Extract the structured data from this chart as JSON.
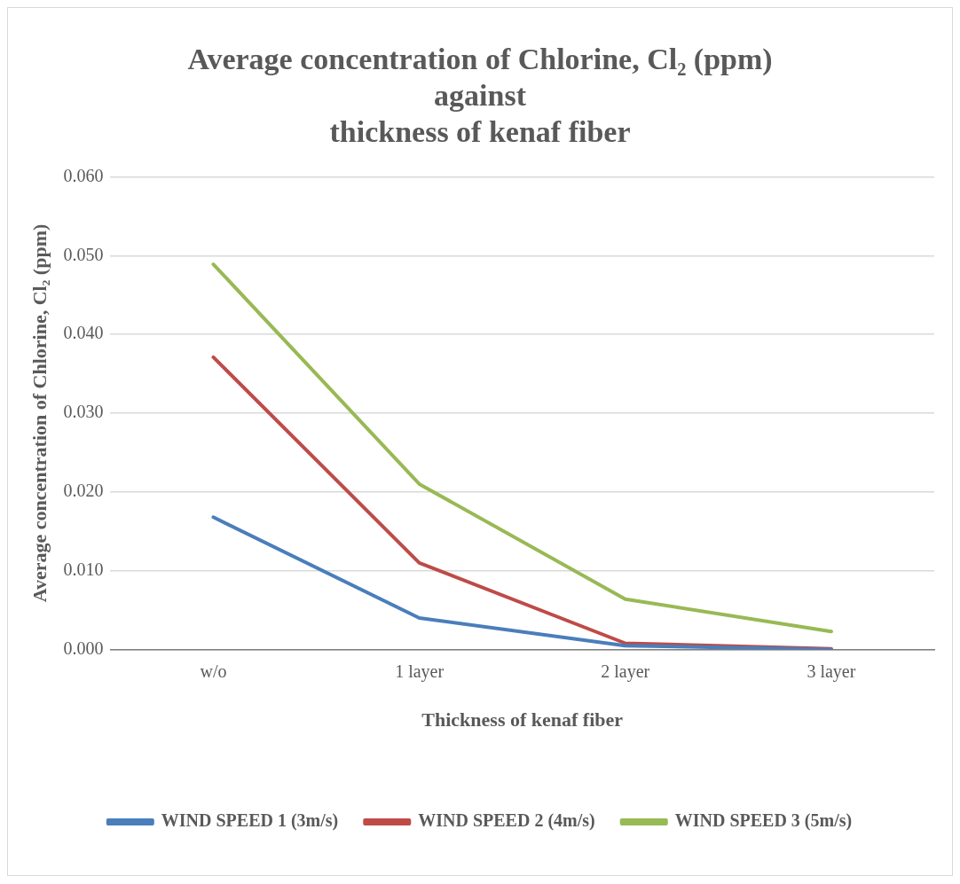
{
  "chart_data": {
    "type": "line",
    "title": "Average concentration of Chlorine, Cl₂ (ppm)\nagainst\nthickness of kenaf fiber",
    "xlabel": "Thickness of kenaf fiber",
    "ylabel": "Average concentration of Chlorine, Cl₂ (ppm)",
    "categories": [
      "w/o",
      "1 layer",
      "2 layer",
      "3 layer"
    ],
    "series": [
      {
        "name": "WIND SPEED 1 (3m/s)",
        "color": "#4a7ebb",
        "values": [
          0.0168,
          0.004,
          0.0005,
          0
        ]
      },
      {
        "name": "WIND SPEED 2 (4m/s)",
        "color": "#be4b48",
        "values": [
          0.0371,
          0.011,
          0.0008,
          0.0001
        ]
      },
      {
        "name": "WIND SPEED 3 (5m/s)",
        "color": "#98b954",
        "values": [
          0.0489,
          0.021,
          0.0064,
          0.0023
        ]
      }
    ],
    "ylim": [
      0,
      0.06
    ],
    "yticks": [
      {
        "value": 0,
        "label": "0.000"
      },
      {
        "value": 0.01,
        "label": "0.010"
      },
      {
        "value": 0.02,
        "label": "0.020"
      },
      {
        "value": 0.03,
        "label": "0.030"
      },
      {
        "value": 0.04,
        "label": "0.040"
      },
      {
        "value": 0.05,
        "label": "0.050"
      },
      {
        "value": 0.06,
        "label": "0.060"
      }
    ],
    "grid": "y",
    "legend": "bottom",
    "marker": "none",
    "line_style": "solid"
  }
}
